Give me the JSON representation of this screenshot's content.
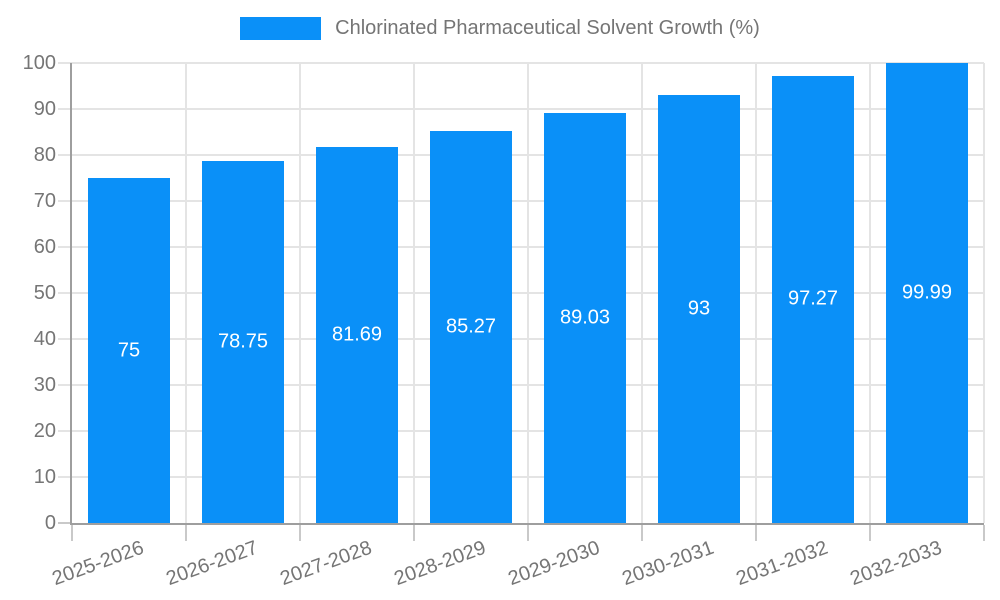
{
  "chart_data": {
    "type": "bar",
    "title": "Chlorinated Pharmaceutical Solvent Growth (%)",
    "categories": [
      "2025-2026",
      "2026-2027",
      "2027-2028",
      "2028-2029",
      "2029-2030",
      "2030-2031",
      "2031-2032",
      "2032-2033"
    ],
    "values": [
      75,
      78.75,
      81.69,
      85.27,
      89.03,
      93,
      97.27,
      99.99
    ],
    "value_labels": [
      "75",
      "78.75",
      "81.69",
      "85.27",
      "89.03",
      "93",
      "97.27",
      "99.99"
    ],
    "xlabel": "",
    "ylabel": "",
    "ylim": [
      0,
      100
    ],
    "ytick_step": 10,
    "ytick_labels": [
      "0",
      "10",
      "20",
      "30",
      "40",
      "50",
      "60",
      "70",
      "80",
      "90",
      "100"
    ],
    "grid": true,
    "legend_position": "top",
    "colors": {
      "bar": "#0a90f8",
      "value_label": "#ffffff",
      "axis_text": "#757575",
      "grid_line": "#e4e4e4",
      "axis_line": "#9e9e9e",
      "tick": "#c9c9c9",
      "background": "#ffffff"
    }
  }
}
